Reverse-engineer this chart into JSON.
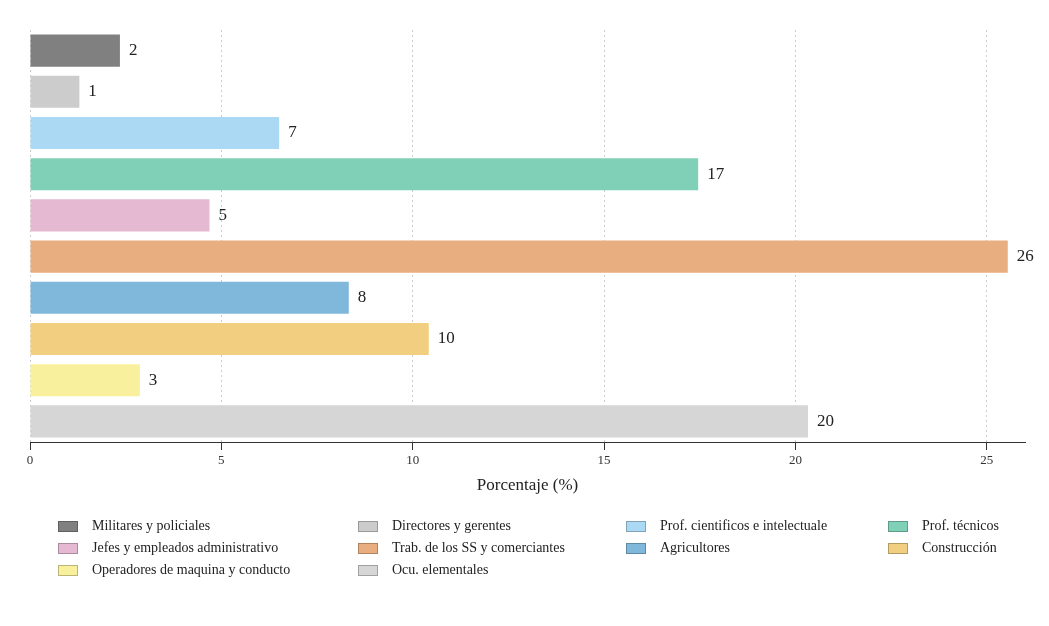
{
  "chart_data": {
    "type": "bar",
    "orientation": "horizontal",
    "xlabel": "Porcentaje (%)",
    "categories": [
      null,
      null,
      null,
      null,
      null,
      null,
      null,
      null,
      null,
      null
    ],
    "xlim": [
      0,
      26
    ],
    "xticks": [
      0,
      5,
      10,
      15,
      20,
      25
    ],
    "grid": "x",
    "legend": "bottom",
    "series": [
      {
        "name": "Militares y policiales",
        "color": "#808080",
        "values": [
          2.35,
          null,
          null,
          null,
          null,
          null,
          null,
          null,
          null,
          null
        ],
        "value_labels": [
          "2",
          null,
          null,
          null,
          null,
          null,
          null,
          null,
          null,
          null
        ]
      },
      {
        "name": "Directores y gerentes",
        "color": "#cccccc",
        "values": [
          null,
          1.29,
          null,
          null,
          null,
          null,
          null,
          null,
          null,
          null
        ],
        "value_labels": [
          null,
          "1",
          null,
          null,
          null,
          null,
          null,
          null,
          null,
          null
        ]
      },
      {
        "name": "Prof. cientificos e intelectuale",
        "color": "#abd9f4",
        "values": [
          null,
          null,
          6.51,
          null,
          null,
          null,
          null,
          null,
          null,
          null
        ],
        "value_labels": [
          null,
          null,
          "7",
          null,
          null,
          null,
          null,
          null,
          null,
          null
        ]
      },
      {
        "name": "Prof. técnicos",
        "color": "#80cfb7",
        "values": [
          null,
          null,
          null,
          17.46,
          null,
          null,
          null,
          null,
          null,
          null
        ],
        "value_labels": [
          null,
          null,
          null,
          "17",
          null,
          null,
          null,
          null,
          null,
          null
        ]
      },
      {
        "name": "Jefes y empleados administrativo",
        "color": "#e5b9d2",
        "values": [
          null,
          null,
          null,
          null,
          4.69,
          null,
          null,
          null,
          null,
          null
        ],
        "value_labels": [
          null,
          null,
          null,
          null,
          "5",
          null,
          null,
          null,
          null,
          null
        ]
      },
      {
        "name": "Trab. de los SS y comerciantes",
        "color": "#e9ae80",
        "values": [
          null,
          null,
          null,
          null,
          null,
          25.55,
          null,
          null,
          null,
          null
        ],
        "value_labels": [
          null,
          null,
          null,
          null,
          null,
          "26",
          null,
          null,
          null,
          null
        ]
      },
      {
        "name": "Agricultores",
        "color": "#7fb8db",
        "values": [
          null,
          null,
          null,
          null,
          null,
          null,
          8.33,
          null,
          null,
          null
        ],
        "value_labels": [
          null,
          null,
          null,
          null,
          null,
          null,
          "8",
          null,
          null,
          null
        ]
      },
      {
        "name": "Construcción",
        "color": "#f2cf80",
        "values": [
          null,
          null,
          null,
          null,
          null,
          null,
          null,
          10.42,
          null,
          null
        ],
        "value_labels": [
          null,
          null,
          null,
          null,
          null,
          null,
          null,
          "10",
          null,
          null
        ]
      },
      {
        "name": "Operadores de maquina y conducto",
        "color": "#f8f09c",
        "values": [
          null,
          null,
          null,
          null,
          null,
          null,
          null,
          null,
          2.87,
          null
        ],
        "value_labels": [
          null,
          null,
          null,
          null,
          null,
          null,
          null,
          null,
          "3",
          null
        ]
      },
      {
        "name": "Ocu. elementales",
        "color": "#d6d6d6",
        "values": [
          null,
          null,
          null,
          null,
          null,
          null,
          null,
          null,
          null,
          20.33
        ],
        "value_labels": [
          null,
          null,
          null,
          null,
          null,
          null,
          null,
          null,
          null,
          "20"
        ]
      }
    ]
  }
}
